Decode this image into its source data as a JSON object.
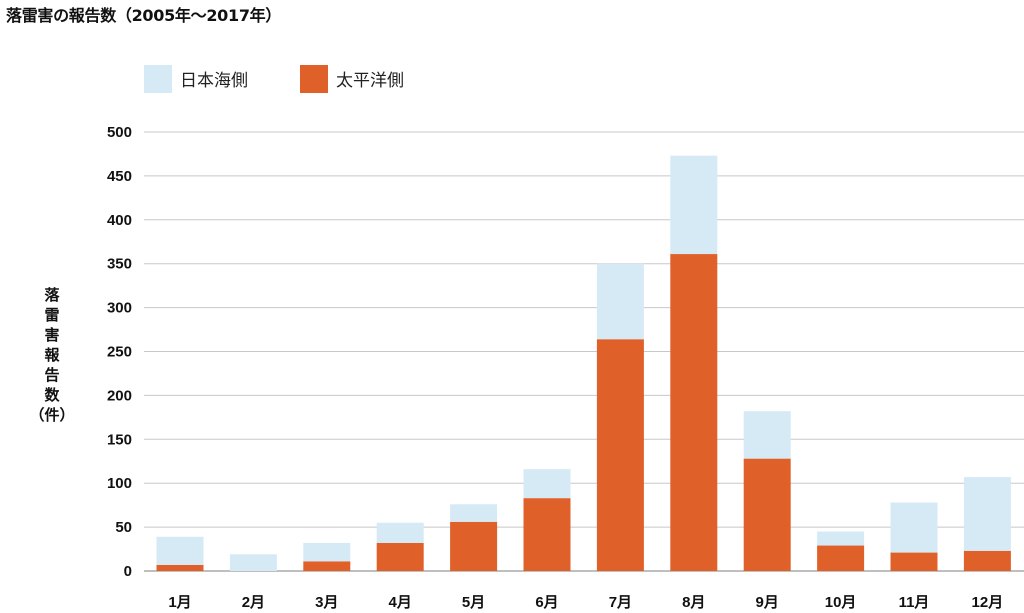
{
  "chart_data": {
    "type": "bar",
    "stacked": true,
    "title": "落雷害の報告数（2005年〜2017年）",
    "xlabel": "",
    "ylabel": "落雷害報告数（件）",
    "ylim": [
      0,
      500
    ],
    "yticks": [
      0,
      50,
      100,
      150,
      200,
      250,
      300,
      350,
      400,
      450,
      500
    ],
    "grid": true,
    "legend_position": "top-left",
    "categories": [
      "1月",
      "2月",
      "3月",
      "4月",
      "5月",
      "6月",
      "7月",
      "8月",
      "9月",
      "10月",
      "11月",
      "12月"
    ],
    "series": [
      {
        "name": "太平洋側",
        "color": "#e0602a",
        "values": [
          7,
          0,
          11,
          32,
          56,
          83,
          264,
          361,
          128,
          29,
          21,
          23
        ]
      },
      {
        "name": "日本海側",
        "color": "#d6eaf5",
        "values": [
          32,
          19,
          21,
          23,
          20,
          33,
          86,
          112,
          54,
          16,
          57,
          84
        ]
      }
    ],
    "gridline_color": "#c8c8c8",
    "axis_color": "#999999"
  }
}
